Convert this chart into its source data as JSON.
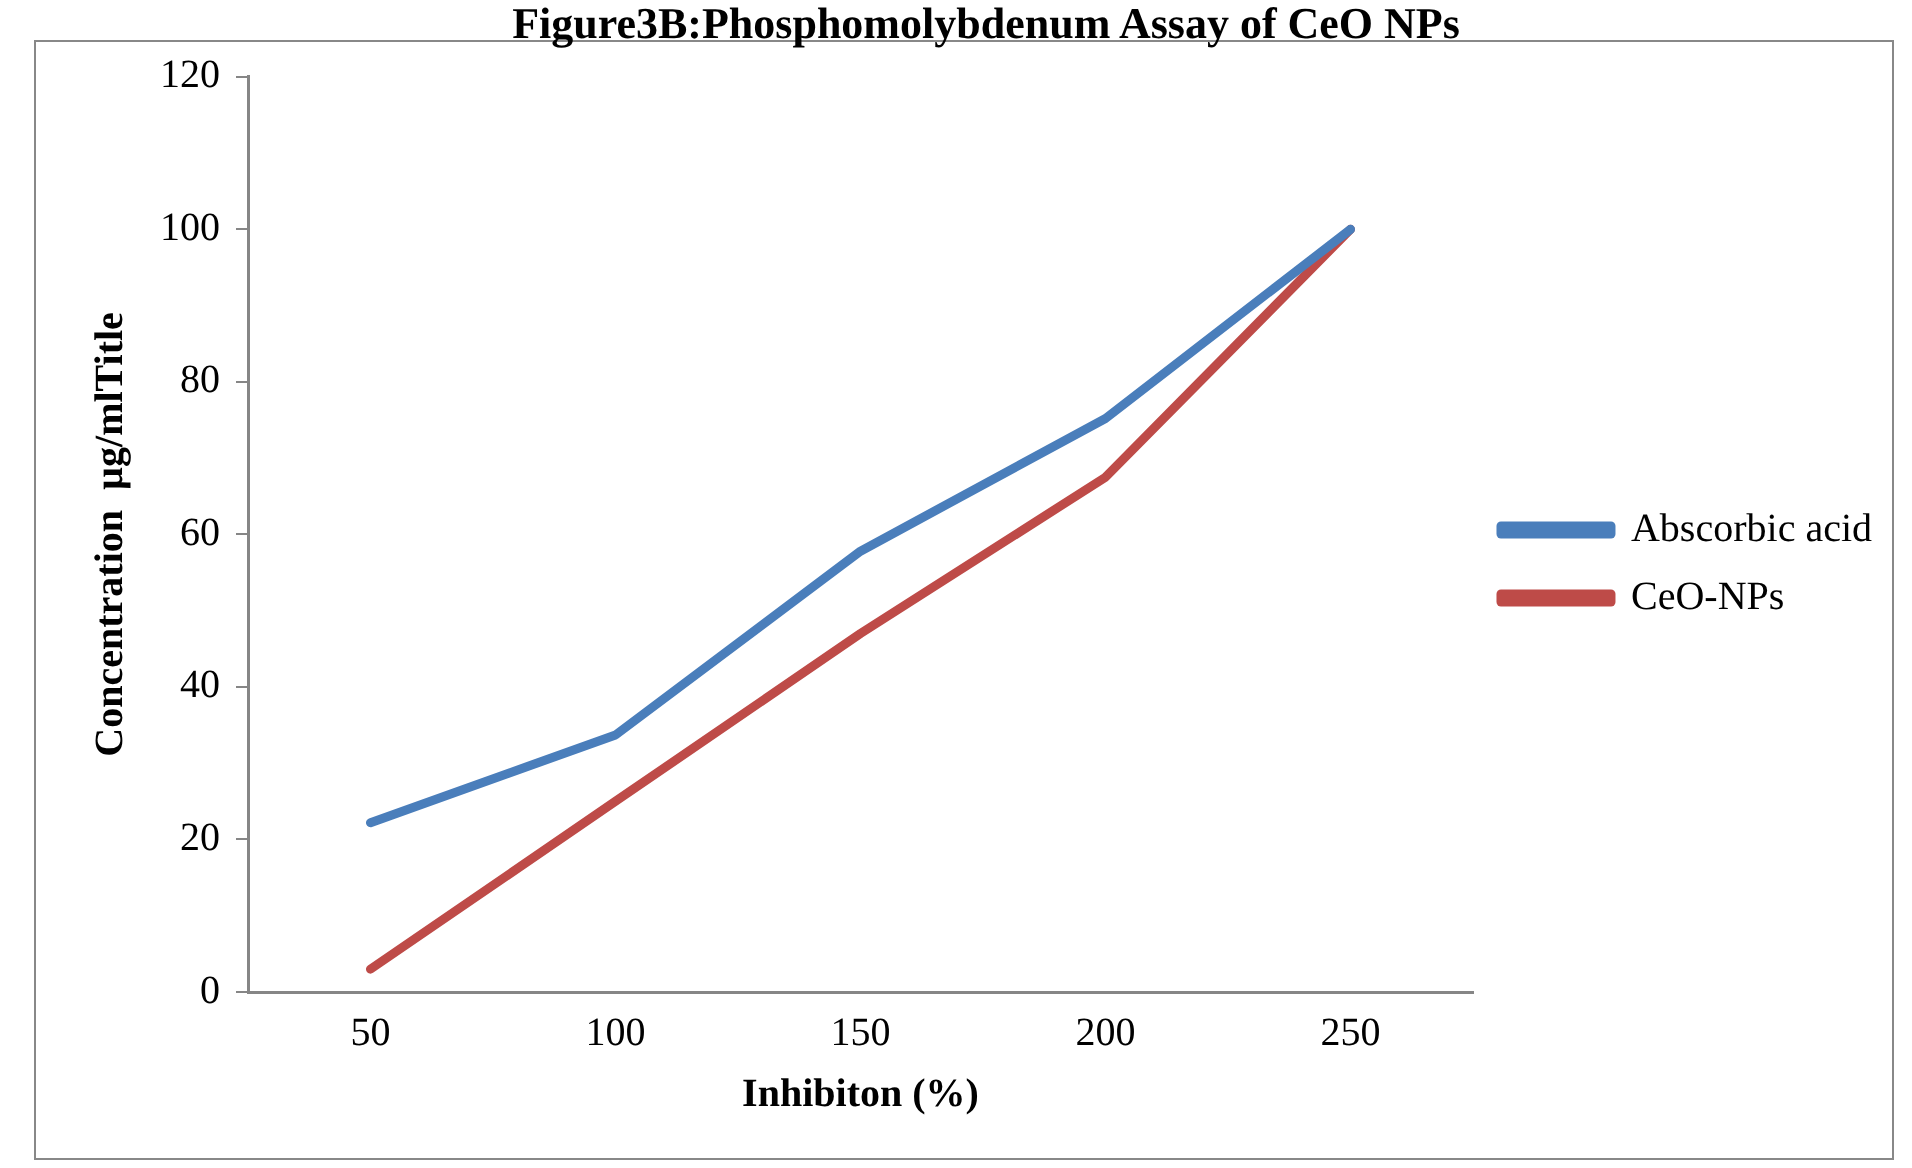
{
  "chart_data": {
    "type": "line",
    "title": "Figure3B:Phosphomolybdenum Assay of CeO NPs",
    "xlabel": "Inhibiton (%)",
    "ylabel": "Concentration  µg/mlTitle",
    "categories": [
      "50",
      "100",
      "150",
      "200",
      "250"
    ],
    "series": [
      {
        "name": "Abscorbic acid",
        "color": "#4a7ebb",
        "values": [
          22.2,
          33.7,
          57.8,
          75.2,
          100
        ]
      },
      {
        "name": "CeO-NPs",
        "color": "#be4b48",
        "values": [
          3,
          25,
          47,
          67.5,
          100
        ]
      }
    ],
    "ylim": [
      0,
      120
    ],
    "yticks": [
      0,
      20,
      40,
      60,
      80,
      100,
      120
    ],
    "grid": false,
    "legend": "right",
    "marker": "none",
    "line_style": "solid"
  }
}
